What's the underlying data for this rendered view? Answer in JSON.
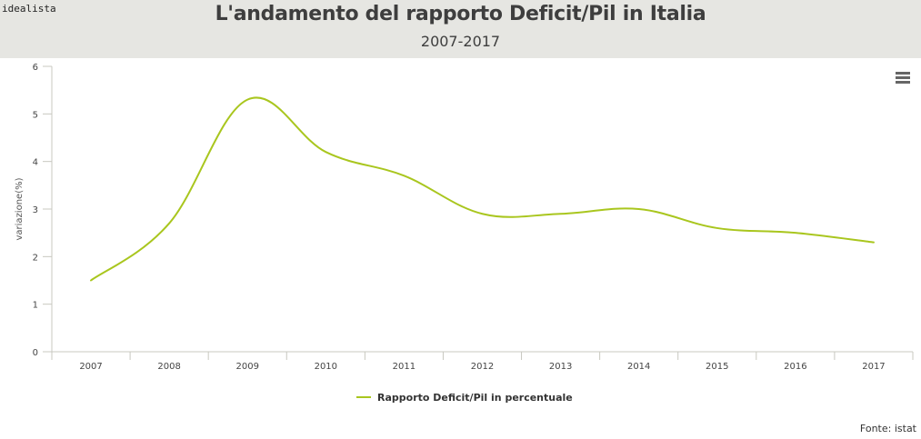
{
  "brand": "idealista",
  "menu_icon": "hamburger-menu-icon",
  "chart_data": {
    "type": "line",
    "title": "L'andamento del rapporto Deficit/Pil in Italia",
    "subtitle": "2007-2017",
    "xlabel": "",
    "ylabel": "variazione(%)",
    "categories": [
      "2007",
      "2008",
      "2009",
      "2010",
      "2011",
      "2012",
      "2013",
      "2014",
      "2015",
      "2016",
      "2017"
    ],
    "series": [
      {
        "name": "Rapporto Deficit/Pil in percentuale",
        "color": "#a9c61e",
        "values": [
          1.5,
          2.7,
          5.3,
          4.2,
          3.7,
          2.9,
          2.9,
          3.0,
          2.6,
          2.5,
          2.3
        ]
      }
    ],
    "ylim": [
      0,
      6
    ],
    "yticks": [
      "0",
      "1",
      "2",
      "3",
      "4",
      "5",
      "6"
    ],
    "grid": false,
    "legend_position": "bottom-center",
    "smooth": true
  },
  "credits": "Fonte: istat"
}
